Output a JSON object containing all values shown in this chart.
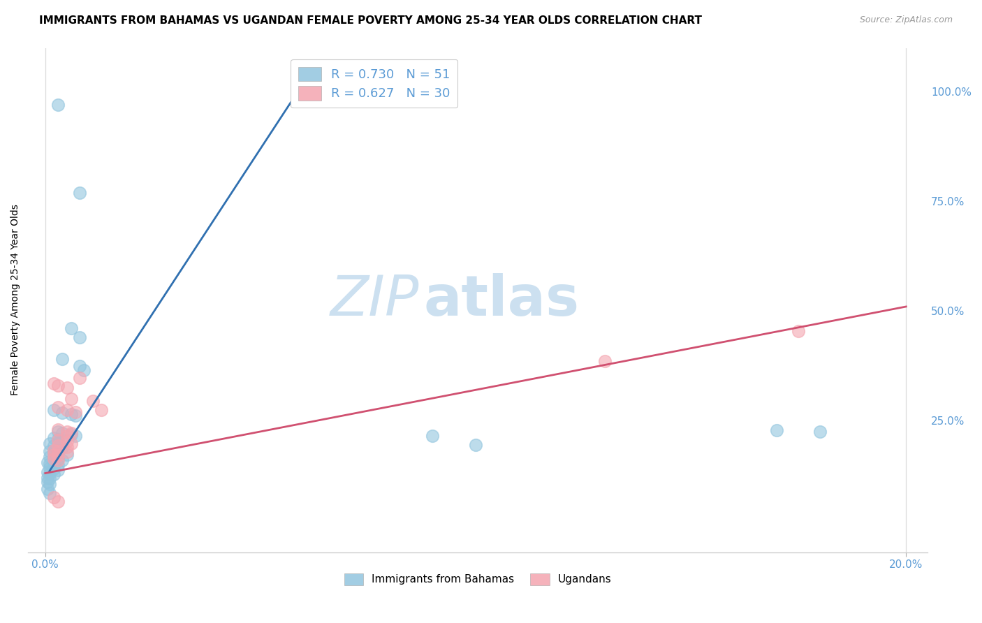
{
  "title": "IMMIGRANTS FROM BAHAMAS VS UGANDAN FEMALE POVERTY AMONG 25-34 YEAR OLDS CORRELATION CHART",
  "source": "Source: ZipAtlas.com",
  "ylabel": "Female Poverty Among 25-34 Year Olds",
  "right_yticks": [
    "100.0%",
    "75.0%",
    "50.0%",
    "25.0%"
  ],
  "right_ytick_vals": [
    1.0,
    0.75,
    0.5,
    0.25
  ],
  "blue_R": "0.730",
  "blue_N": "51",
  "pink_R": "0.627",
  "pink_N": "30",
  "legend_label_blue": "Immigrants from Bahamas",
  "legend_label_pink": "Ugandans",
  "blue_color": "#92c5de",
  "pink_color": "#f4a5b0",
  "blue_scatter": [
    [
      0.003,
      0.97
    ],
    [
      0.008,
      0.77
    ],
    [
      0.006,
      0.46
    ],
    [
      0.008,
      0.44
    ],
    [
      0.004,
      0.39
    ],
    [
      0.008,
      0.375
    ],
    [
      0.009,
      0.365
    ],
    [
      0.002,
      0.275
    ],
    [
      0.004,
      0.268
    ],
    [
      0.006,
      0.265
    ],
    [
      0.007,
      0.262
    ],
    [
      0.003,
      0.225
    ],
    [
      0.004,
      0.222
    ],
    [
      0.006,
      0.218
    ],
    [
      0.007,
      0.215
    ],
    [
      0.002,
      0.21
    ],
    [
      0.003,
      0.208
    ],
    [
      0.004,
      0.205
    ],
    [
      0.003,
      0.2
    ],
    [
      0.001,
      0.198
    ],
    [
      0.002,
      0.193
    ],
    [
      0.003,
      0.19
    ],
    [
      0.004,
      0.188
    ],
    [
      0.001,
      0.18
    ],
    [
      0.002,
      0.178
    ],
    [
      0.003,
      0.175
    ],
    [
      0.005,
      0.172
    ],
    [
      0.001,
      0.168
    ],
    [
      0.002,
      0.165
    ],
    [
      0.003,
      0.162
    ],
    [
      0.004,
      0.16
    ],
    [
      0.0005,
      0.155
    ],
    [
      0.001,
      0.152
    ],
    [
      0.002,
      0.15
    ],
    [
      0.003,
      0.148
    ],
    [
      0.001,
      0.142
    ],
    [
      0.002,
      0.14
    ],
    [
      0.003,
      0.138
    ],
    [
      0.0005,
      0.132
    ],
    [
      0.001,
      0.13
    ],
    [
      0.002,
      0.128
    ],
    [
      0.0005,
      0.12
    ],
    [
      0.001,
      0.118
    ],
    [
      0.0005,
      0.11
    ],
    [
      0.001,
      0.105
    ],
    [
      0.0005,
      0.095
    ],
    [
      0.001,
      0.085
    ],
    [
      0.17,
      0.228
    ],
    [
      0.18,
      0.225
    ],
    [
      0.09,
      0.215
    ],
    [
      0.1,
      0.195
    ]
  ],
  "pink_scatter": [
    [
      0.002,
      0.335
    ],
    [
      0.003,
      0.33
    ],
    [
      0.005,
      0.325
    ],
    [
      0.006,
      0.3
    ],
    [
      0.003,
      0.28
    ],
    [
      0.005,
      0.275
    ],
    [
      0.007,
      0.27
    ],
    [
      0.003,
      0.23
    ],
    [
      0.005,
      0.225
    ],
    [
      0.006,
      0.222
    ],
    [
      0.005,
      0.215
    ],
    [
      0.003,
      0.205
    ],
    [
      0.005,
      0.202
    ],
    [
      0.006,
      0.198
    ],
    [
      0.003,
      0.193
    ],
    [
      0.005,
      0.19
    ],
    [
      0.002,
      0.182
    ],
    [
      0.003,
      0.18
    ],
    [
      0.005,
      0.178
    ],
    [
      0.002,
      0.172
    ],
    [
      0.003,
      0.17
    ],
    [
      0.002,
      0.162
    ],
    [
      0.003,
      0.16
    ],
    [
      0.002,
      0.075
    ],
    [
      0.003,
      0.065
    ],
    [
      0.008,
      0.348
    ],
    [
      0.011,
      0.295
    ],
    [
      0.013,
      0.275
    ],
    [
      0.175,
      0.455
    ],
    [
      0.13,
      0.385
    ]
  ],
  "blue_line_x": [
    0.001,
    0.06
  ],
  "blue_line_y": [
    0.135,
    1.02
  ],
  "pink_line_x": [
    0.0,
    0.2
  ],
  "pink_line_y": [
    0.13,
    0.51
  ],
  "xlim": [
    -0.004,
    0.205
  ],
  "ylim": [
    -0.05,
    1.1
  ],
  "xtick_positions": [
    0.0,
    0.2
  ],
  "xtick_labels": [
    "0.0%",
    "20.0%"
  ],
  "background_color": "#ffffff",
  "watermark_zip": "ZIP",
  "watermark_atlas": "atlas",
  "watermark_color": "#cce0f0",
  "title_fontsize": 11,
  "source_fontsize": 9,
  "axis_label_color": "#5b9bd5",
  "tick_color": "#5b9bd5",
  "grid_color": "#d8d8d8",
  "legend_fontsize": 13
}
